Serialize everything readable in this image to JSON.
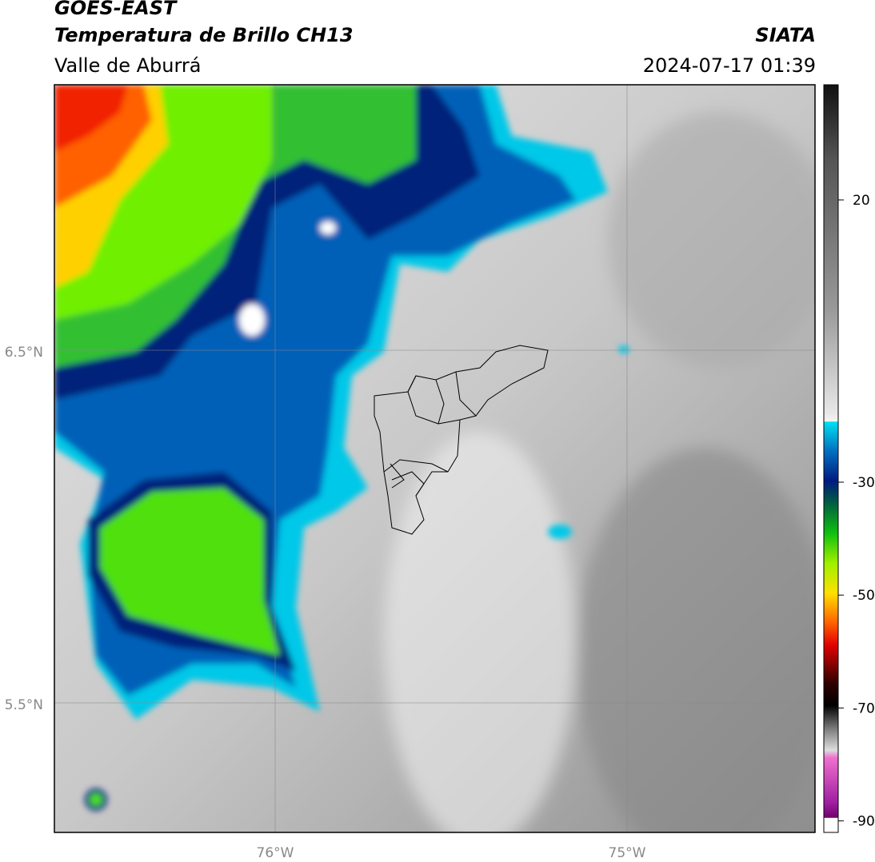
{
  "header": {
    "title": "GOES-EAST",
    "subtitle": "Temperatura de Brillo CH13",
    "region": "Valle de Aburrá",
    "source": "SIATA",
    "datetime": "2024-07-17 01:39"
  },
  "map": {
    "lat_labels": [
      "6.5°N",
      "5.5°N"
    ],
    "lon_labels": [
      "76°W",
      "75°W"
    ]
  },
  "colorbar": {
    "ticks": [
      20,
      -30,
      -50,
      -70,
      -90
    ]
  }
}
